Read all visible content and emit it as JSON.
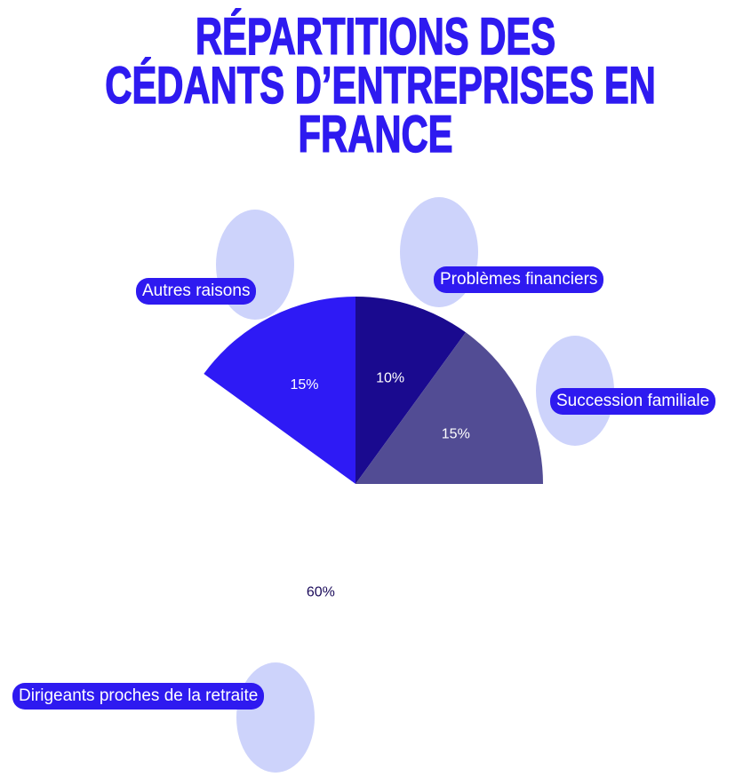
{
  "chart_data": {
    "type": "pie",
    "title": [
      "RÉPARTITIONS DES",
      "CÉDANTS D’ENTREPRISES EN",
      "FRANCE"
    ],
    "slices": [
      {
        "label": "Autres raisons",
        "value": 15,
        "value_label": "15%",
        "color": "#2e1af5"
      },
      {
        "label": "Problèmes financiers",
        "value": 10,
        "value_label": "10%",
        "color": "#1a0a8f"
      },
      {
        "label": "Succession familiale",
        "value": 15,
        "value_label": "15%",
        "color": "#524c94"
      },
      {
        "label": "Dirigeants proches de la retraite",
        "value": 60,
        "value_label": "60%",
        "color": "#ffffff"
      }
    ],
    "start_angle_deg": -54,
    "legend_bubble_color": "#cdd3fb"
  }
}
